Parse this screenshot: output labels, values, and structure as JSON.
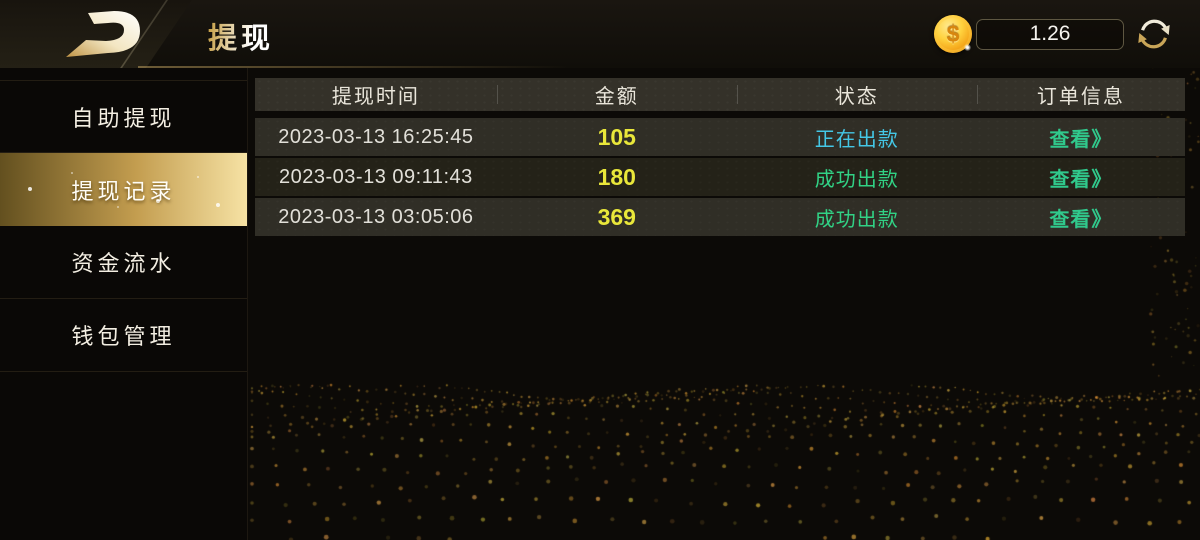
{
  "topbar": {
    "title": "提现",
    "coin_symbol": "$",
    "balance": "1.26"
  },
  "sidebar": {
    "items": [
      {
        "label": "自助提现",
        "selected": false
      },
      {
        "label": "提现记录",
        "selected": true
      },
      {
        "label": "资金流水",
        "selected": false
      },
      {
        "label": "钱包管理",
        "selected": false
      }
    ]
  },
  "table": {
    "headers": [
      "提现时间",
      "金额",
      "状态",
      "订单信息"
    ],
    "rows": [
      {
        "time": "2023-03-13 16:25:45",
        "amount": "105",
        "status": "正在出款",
        "status_type": "processing",
        "action": "查看》"
      },
      {
        "time": "2023-03-13 09:11:43",
        "amount": "180",
        "status": "成功出款",
        "status_type": "success",
        "action": "查看》"
      },
      {
        "time": "2023-03-13 03:05:06",
        "amount": "369",
        "status": "成功出款",
        "status_type": "success",
        "action": "查看》"
      }
    ]
  },
  "colors": {
    "accent_gold": "#c8a24a",
    "amount_yellow": "#e9e73a",
    "status_processing": "#44c7e6",
    "status_success": "#31d285",
    "action_link": "#30c98c"
  }
}
